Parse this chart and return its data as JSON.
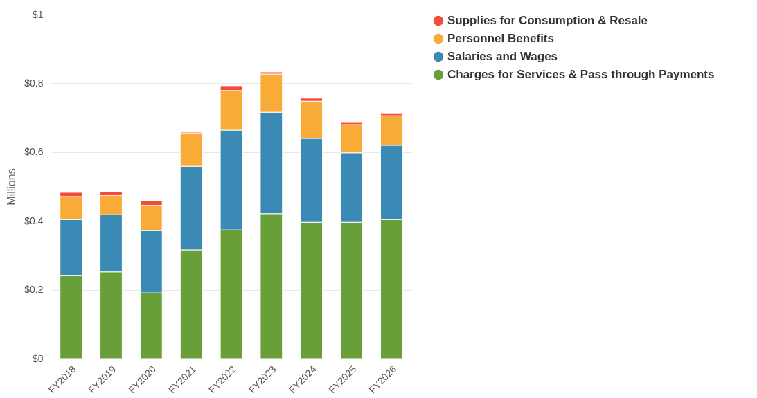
{
  "chart_data": {
    "type": "bar",
    "stacked": true,
    "ylabel": "Millions",
    "categories": [
      "FY2018",
      "FY2019",
      "FY2020",
      "FY2021",
      "FY2022",
      "FY2023",
      "FY2024",
      "FY2025",
      "FY2026"
    ],
    "series": [
      {
        "name": "Charges for Services & Pass through Payments",
        "color": "#689f38",
        "values": [
          0.241,
          0.252,
          0.191,
          0.316,
          0.374,
          0.421,
          0.396,
          0.396,
          0.404
        ]
      },
      {
        "name": "Salaries and Wages",
        "color": "#3b89b5",
        "values": [
          0.163,
          0.166,
          0.181,
          0.243,
          0.29,
          0.295,
          0.244,
          0.202,
          0.216
        ]
      },
      {
        "name": "Personnel Benefits",
        "color": "#f9ab38",
        "values": [
          0.067,
          0.057,
          0.073,
          0.097,
          0.115,
          0.111,
          0.108,
          0.082,
          0.086
        ]
      },
      {
        "name": "Supplies for Consumption & Resale",
        "color": "#f44b3a",
        "values": [
          0.012,
          0.01,
          0.014,
          0.004,
          0.014,
          0.006,
          0.009,
          0.008,
          0.008
        ]
      }
    ],
    "ylim": [
      0,
      1
    ],
    "yticks": [
      {
        "value": 0,
        "label": "$0"
      },
      {
        "value": 0.2,
        "label": "$0.2"
      },
      {
        "value": 0.4,
        "label": "$0.4"
      },
      {
        "value": 0.6,
        "label": "$0.6"
      },
      {
        "value": 0.8,
        "label": "$0.8"
      },
      {
        "value": 1,
        "label": "$1"
      }
    ],
    "grid": "y",
    "legend": "right"
  }
}
